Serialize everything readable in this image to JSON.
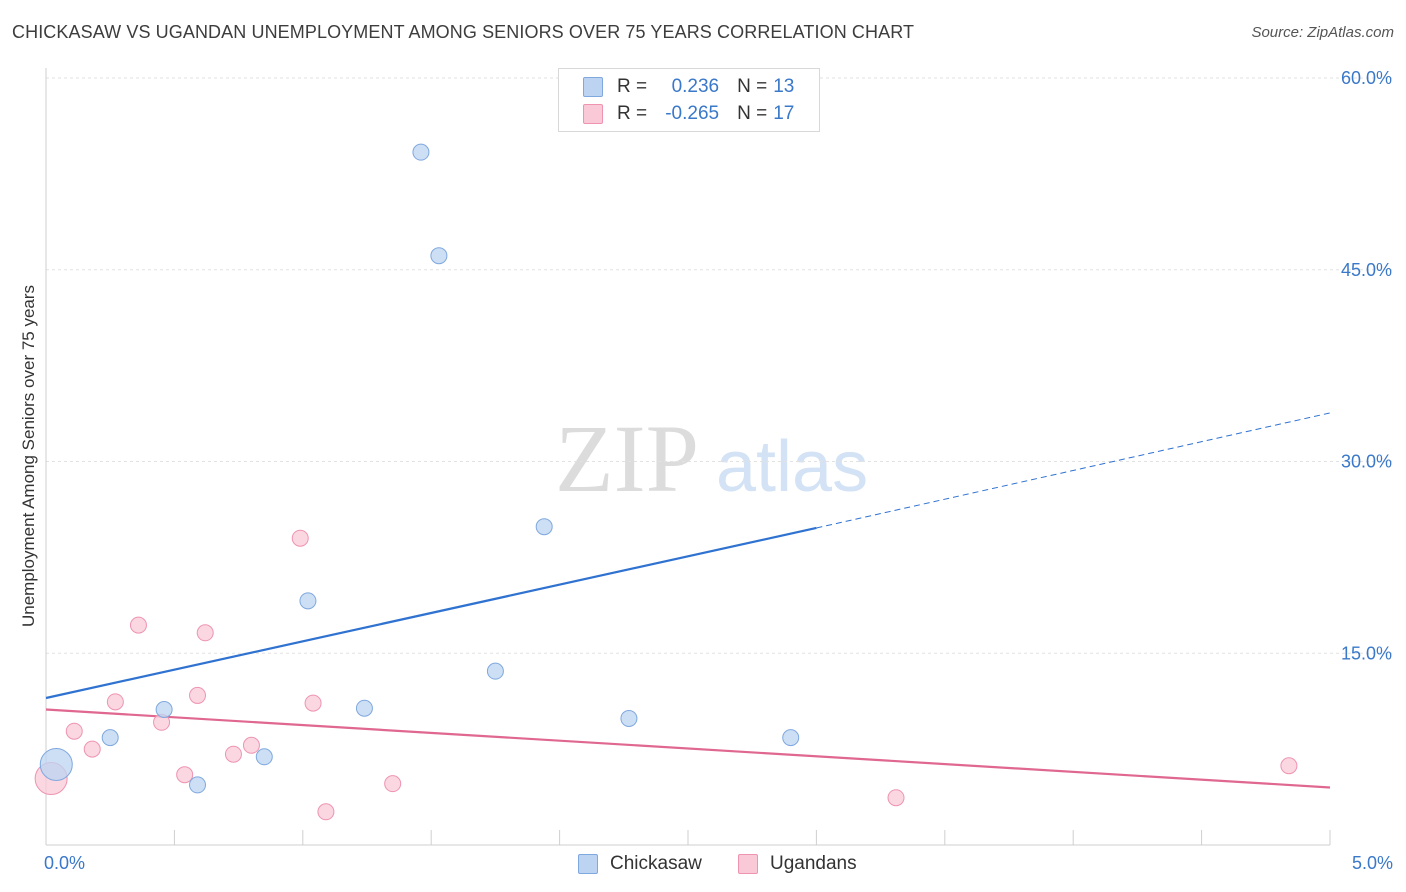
{
  "title": "CHICKASAW VS UGANDAN UNEMPLOYMENT AMONG SENIORS OVER 75 YEARS CORRELATION CHART",
  "source": "Source: ZipAtlas.com",
  "watermark": {
    "zip": "ZIP",
    "atlas": "atlas"
  },
  "legend_top": [
    {
      "r_label": "R =",
      "r_value": "0.236",
      "n_label": "N =",
      "n_value": "13",
      "color": "#bcd4f2",
      "border": "#7fa8de"
    },
    {
      "r_label": "R =",
      "r_value": "-0.265",
      "n_label": "N =",
      "n_value": "17",
      "color": "#f9c9d8",
      "border": "#ee94b1"
    }
  ],
  "legend_bottom": [
    {
      "label": "Chickasaw",
      "color": "#bcd4f2",
      "border": "#7fa8de"
    },
    {
      "label": "Ugandans",
      "color": "#f9c9d8",
      "border": "#ee94b1"
    }
  ],
  "chart_data": {
    "type": "scatter",
    "title": "CHICKASAW VS UGANDAN UNEMPLOYMENT AMONG SENIORS OVER 75 YEARS CORRELATION CHART",
    "xlabel": "",
    "ylabel": "Unemployment Among Seniors over 75 years",
    "xlim": [
      0,
      5
    ],
    "ylim": [
      0,
      60
    ],
    "x_tick_labels": [
      {
        "value": 0,
        "label": "0.0%"
      },
      {
        "value": 5,
        "label": "5.0%"
      }
    ],
    "y_tick_labels": [
      {
        "value": 15,
        "label": "15.0%"
      },
      {
        "value": 30,
        "label": "30.0%"
      },
      {
        "value": 45,
        "label": "45.0%"
      },
      {
        "value": 60,
        "label": "60.0%"
      }
    ],
    "y_gridlines": [
      15,
      30,
      45,
      60
    ],
    "x_ticks_minor": [
      0.5,
      1.0,
      1.5,
      2.0,
      2.5,
      3.0,
      3.5,
      4.0,
      4.5,
      5.0
    ],
    "series": [
      {
        "name": "Chickasaw",
        "color": "#bcd4f2",
        "stroke": "#7fa8de",
        "line_color": "#2f72d0",
        "points": [
          {
            "x": 0.04,
            "y": 6.3,
            "size": "large"
          },
          {
            "x": 0.25,
            "y": 8.4
          },
          {
            "x": 0.46,
            "y": 10.6
          },
          {
            "x": 0.59,
            "y": 4.7
          },
          {
            "x": 0.85,
            "y": 6.9
          },
          {
            "x": 1.02,
            "y": 19.1
          },
          {
            "x": 1.24,
            "y": 10.7
          },
          {
            "x": 1.46,
            "y": 54.2
          },
          {
            "x": 1.53,
            "y": 46.1
          },
          {
            "x": 1.75,
            "y": 13.6
          },
          {
            "x": 1.94,
            "y": 24.9
          },
          {
            "x": 2.27,
            "y": 9.9
          },
          {
            "x": 2.9,
            "y": 8.4
          }
        ],
        "trend": {
          "x0": 0,
          "y0": 11.5,
          "x1": 3.0,
          "y1": 24.8,
          "dash_to_x": 5.0,
          "dash_to_y": 33.8
        }
      },
      {
        "name": "Ugandans",
        "color": "#f9c9d8",
        "stroke": "#ee94b1",
        "line_color": "#e0678f",
        "points": [
          {
            "x": 0.02,
            "y": 5.2,
            "size": "large"
          },
          {
            "x": 0.11,
            "y": 8.9
          },
          {
            "x": 0.18,
            "y": 7.5
          },
          {
            "x": 0.27,
            "y": 11.2
          },
          {
            "x": 0.36,
            "y": 17.2
          },
          {
            "x": 0.45,
            "y": 9.6
          },
          {
            "x": 0.54,
            "y": 5.5
          },
          {
            "x": 0.59,
            "y": 11.7
          },
          {
            "x": 0.62,
            "y": 16.6
          },
          {
            "x": 0.73,
            "y": 7.1
          },
          {
            "x": 0.8,
            "y": 7.8
          },
          {
            "x": 0.99,
            "y": 24.0
          },
          {
            "x": 1.04,
            "y": 11.1
          },
          {
            "x": 1.09,
            "y": 2.6
          },
          {
            "x": 1.35,
            "y": 4.8
          },
          {
            "x": 3.31,
            "y": 3.7
          },
          {
            "x": 4.84,
            "y": 6.2
          }
        ],
        "trend": {
          "x0": 0,
          "y0": 10.6,
          "x1": 5.0,
          "y1": 4.5
        }
      }
    ]
  }
}
